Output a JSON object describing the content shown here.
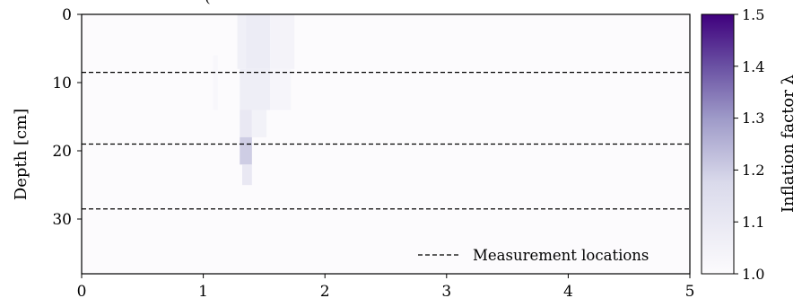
{
  "chart_data": {
    "type": "heatmap",
    "title_fragment": "(",
    "xlim": [
      0,
      5
    ],
    "ylim": [
      38,
      0
    ],
    "xticks": [
      "0",
      "1",
      "2",
      "3",
      "4",
      "5"
    ],
    "yticks": [
      "0",
      "10",
      "20",
      "30"
    ],
    "ylabel": "Depth [cm]",
    "colorbar": {
      "label": "Inflation factor λ",
      "range": [
        1.0,
        1.5
      ],
      "ticks": [
        "1.0",
        "1.1",
        "1.2",
        "1.3",
        "1.4",
        "1.5"
      ],
      "colormap": "Purples",
      "color_min": "#fcfbfd",
      "color_max": "#3f007d"
    },
    "measurement_locations_depth_cm": [
      8.5,
      19,
      28.5
    ],
    "legend": {
      "entries": [
        "Measurement locations"
      ],
      "placement": "lower-right"
    },
    "regions": [
      {
        "x": [
          1.28,
          1.35
        ],
        "depth": [
          0,
          8
        ],
        "value": 1.06
      },
      {
        "x": [
          1.35,
          1.55
        ],
        "depth": [
          0,
          8
        ],
        "value": 1.08
      },
      {
        "x": [
          1.55,
          1.75
        ],
        "depth": [
          0,
          8
        ],
        "value": 1.04
      },
      {
        "x": [
          1.3,
          1.55
        ],
        "depth": [
          8,
          14
        ],
        "value": 1.07
      },
      {
        "x": [
          1.55,
          1.72
        ],
        "depth": [
          8,
          14
        ],
        "value": 1.03
      },
      {
        "x": [
          1.3,
          1.4
        ],
        "depth": [
          14,
          18
        ],
        "value": 1.1
      },
      {
        "x": [
          1.4,
          1.52
        ],
        "depth": [
          14,
          18
        ],
        "value": 1.05
      },
      {
        "x": [
          1.3,
          1.4
        ],
        "depth": [
          18,
          22
        ],
        "value": 1.2
      },
      {
        "x": [
          1.32,
          1.4
        ],
        "depth": [
          22,
          25
        ],
        "value": 1.1
      },
      {
        "x": [
          1.08,
          1.12
        ],
        "depth": [
          6,
          14
        ],
        "value": 1.02
      }
    ]
  }
}
